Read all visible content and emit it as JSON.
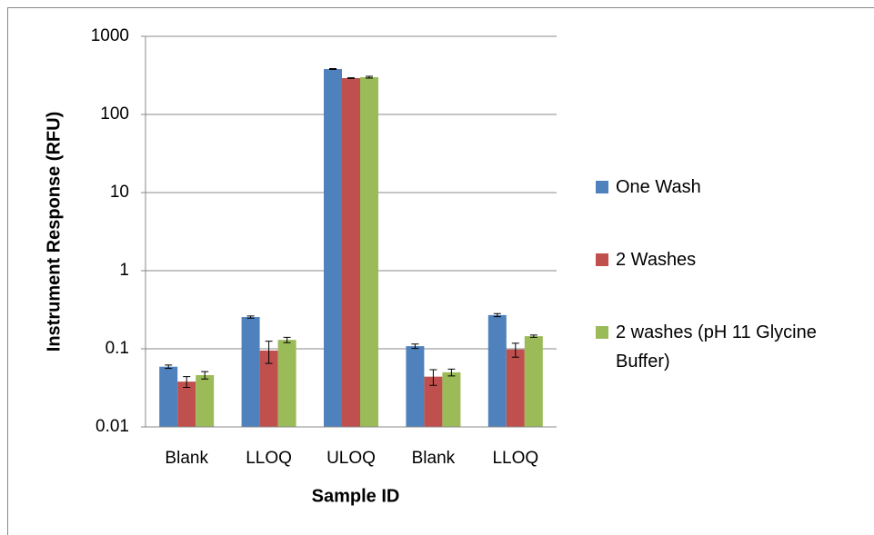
{
  "chart_data": {
    "type": "bar",
    "x_label": "Sample ID",
    "y_label": "Instrument Response (RFU)",
    "categories": [
      "Blank",
      "LLOQ",
      "ULOQ",
      "Blank",
      "LLOQ"
    ],
    "series": [
      {
        "name": "One Wash",
        "color": "#4f81bd",
        "values": [
          0.059,
          0.255,
          381,
          0.108,
          0.27
        ],
        "errors": [
          0.003,
          0.008,
          5,
          0.007,
          0.012
        ]
      },
      {
        "name": "2 Washes",
        "color": "#c0504d",
        "values": [
          0.038,
          0.095,
          292,
          0.044,
          0.098
        ],
        "errors": [
          0.006,
          0.03,
          3,
          0.01,
          0.02
        ]
      },
      {
        "name": "2 washes (pH 11 Glycine Buffer)",
        "color": "#9bbb59",
        "values": [
          0.046,
          0.13,
          300,
          0.05,
          0.145
        ],
        "errors": [
          0.005,
          0.01,
          8,
          0.005,
          0.005
        ]
      }
    ],
    "ylim": [
      0.01,
      1000
    ],
    "yticks": [
      0.01,
      0.1,
      1,
      10,
      100,
      1000
    ],
    "log_scale_y": true,
    "grid": true,
    "legend": "right"
  }
}
